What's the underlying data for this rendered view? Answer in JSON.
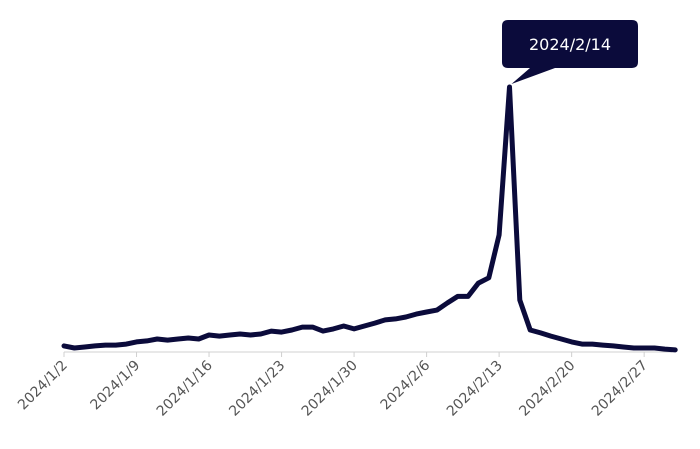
{
  "chart_data": {
    "type": "line",
    "categories": [
      "2024/1/2",
      null,
      null,
      null,
      null,
      null,
      null,
      "2024/1/9",
      null,
      null,
      null,
      null,
      null,
      null,
      "2024/1/16",
      null,
      null,
      null,
      null,
      null,
      null,
      "2024/1/23",
      null,
      null,
      null,
      null,
      null,
      null,
      "2024/1/30",
      null,
      null,
      null,
      null,
      null,
      null,
      "2024/2/6",
      null,
      null,
      null,
      null,
      null,
      null,
      "2024/2/13",
      null,
      null,
      null,
      null,
      null,
      null,
      "2024/2/20",
      null,
      null,
      null,
      null,
      null,
      null,
      "2024/2/27",
      null,
      null,
      null
    ],
    "series": [
      {
        "color": "#0b0b3b",
        "values": [
          2.3,
          1.5,
          1.9,
          2.3,
          2.6,
          2.6,
          3.0,
          3.8,
          4.2,
          4.9,
          4.5,
          4.9,
          5.3,
          4.9,
          6.4,
          6.0,
          6.4,
          6.8,
          6.4,
          6.8,
          7.9,
          7.5,
          8.3,
          9.4,
          9.4,
          7.9,
          8.7,
          9.8,
          8.7,
          9.8,
          10.9,
          12.1,
          12.5,
          13.2,
          14.3,
          15.1,
          15.8,
          18.5,
          21.0,
          21.0,
          26.0,
          28.0,
          44.2,
          100,
          19.6,
          8.3,
          7.2,
          6.0,
          4.9,
          3.8,
          3.0,
          3.0,
          2.6,
          2.3,
          1.9,
          1.5,
          1.5,
          1.5,
          1.1,
          0.8
        ]
      }
    ],
    "annotation": {
      "text": "2024/2/14",
      "index": 43
    }
  }
}
